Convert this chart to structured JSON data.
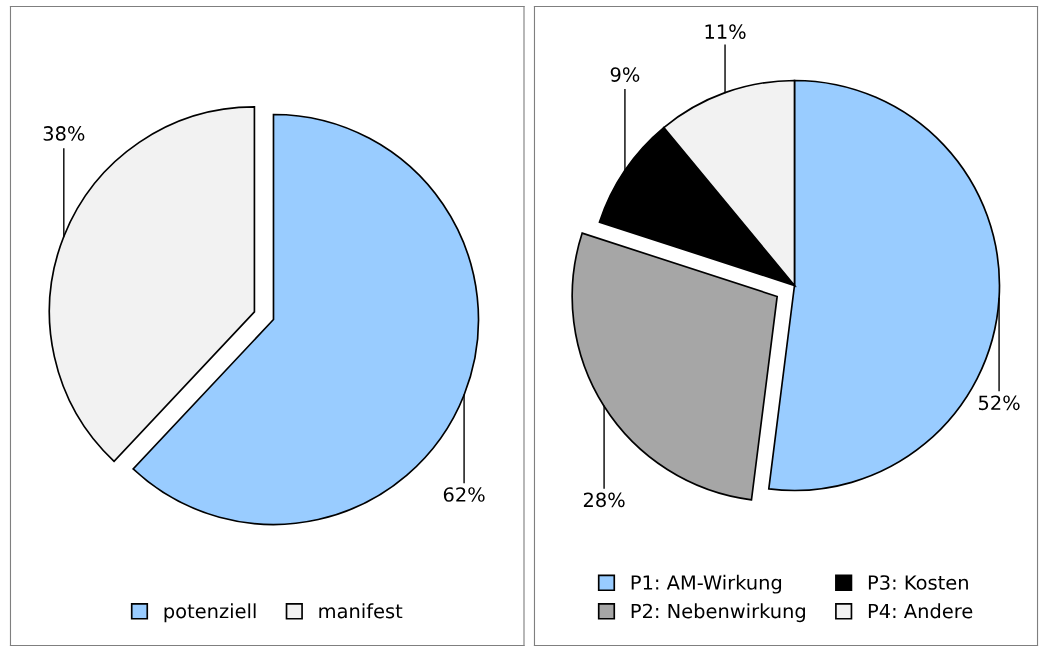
{
  "chart_data": [
    {
      "type": "pie",
      "categories": [
        "potenziell",
        "manifest"
      ],
      "values": [
        62,
        38
      ],
      "colors": [
        "#99ccff",
        "#f2f2f2"
      ],
      "value_labels": [
        "62%",
        "38%"
      ],
      "legend": "bottom"
    },
    {
      "type": "pie",
      "categories": [
        "P1: AM-Wirkung",
        "P2: Nebenwirkung",
        "P3: Kosten",
        "P4: Andere"
      ],
      "values": [
        52,
        28,
        9,
        11
      ],
      "colors": [
        "#99ccff",
        "#a6a6a6",
        "#000000",
        "#f2f2f2"
      ],
      "value_labels": [
        "52%",
        "28%",
        "9%",
        "11%"
      ],
      "legend": "bottom"
    }
  ]
}
